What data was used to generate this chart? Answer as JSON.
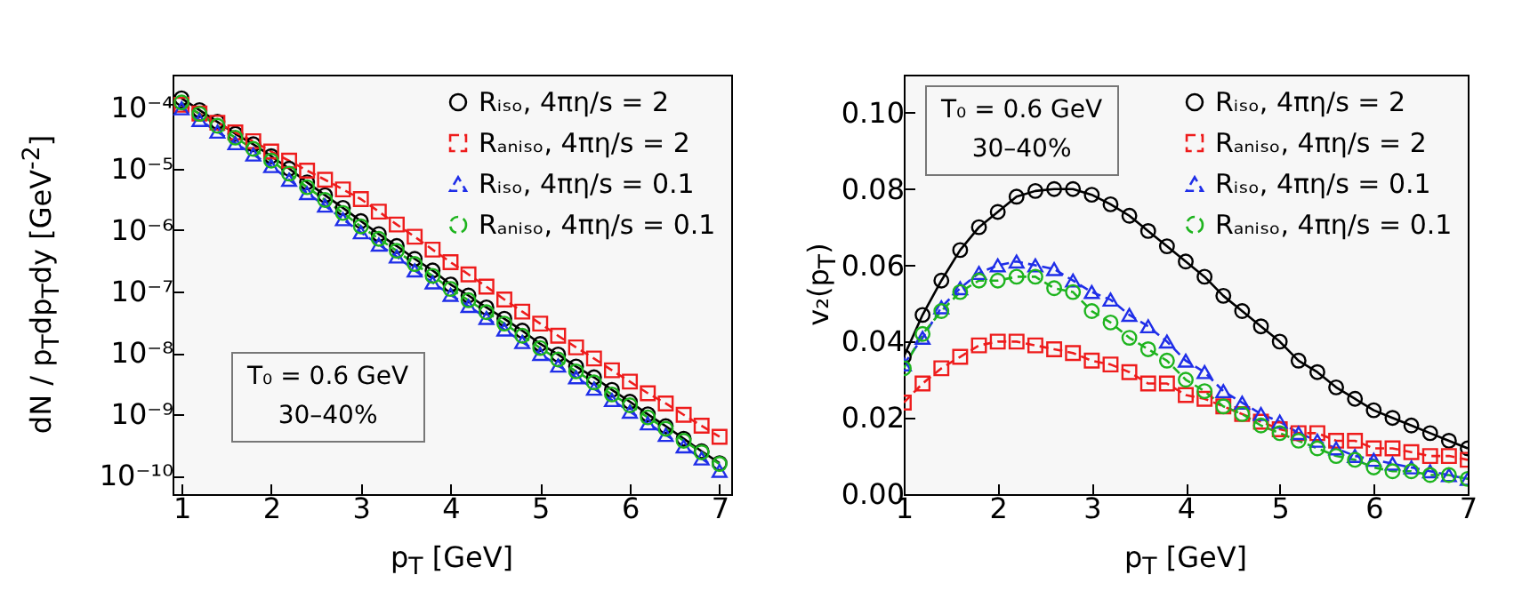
{
  "chart_data": [
    {
      "type": "line",
      "xlabel": "p$_{T}$ [GeV]",
      "ylabel": "dN / p$_{T}$dp$_{T}$dy  [GeV$^{-2}$]",
      "log": "y",
      "legend": "top right",
      "xlim": [
        0.9,
        7.13
      ],
      "xticks": [
        1,
        2,
        3,
        4,
        5,
        6,
        7
      ],
      "ylim": [
        5e-11,
        0.00034
      ],
      "yticks": [
        {
          "value": 0.0001,
          "label": "10⁻⁴"
        },
        {
          "value": 1e-05,
          "label": "10⁻⁵"
        },
        {
          "value": 1e-06,
          "label": "10⁻⁶"
        },
        {
          "value": 1e-07,
          "label": "10⁻⁷"
        },
        {
          "value": 1e-08,
          "label": "10⁻⁸"
        },
        {
          "value": 1e-09,
          "label": "10⁻⁹"
        },
        {
          "value": 1e-10,
          "label": "10⁻¹⁰"
        }
      ],
      "annotations": [
        "T₀ = 0.6 GeV",
        "30–40%"
      ],
      "x": [
        1,
        1.2,
        1.4,
        1.6,
        1.8,
        2,
        2.2,
        2.4,
        2.6,
        2.8,
        3,
        3.2,
        3.4,
        3.6,
        3.8,
        4,
        4.2,
        4.4,
        4.6,
        4.8,
        5,
        5.2,
        5.4,
        5.6,
        5.8,
        6,
        6.2,
        6.4,
        6.6,
        6.8,
        7
      ],
      "series": [
        {
          "name": "Rᵢₛₒ, 4πη/s = 2",
          "color": "#000000",
          "marker": "circle",
          "line_style": "solid",
          "values": [
            0.00014,
            9e-05,
            5.8e-05,
            3.7e-05,
            2.5e-05,
            1.6e-05,
            1e-05,
            6e-06,
            3.7e-06,
            2.3e-06,
            1.4e-06,
            8.6e-07,
            5.5e-07,
            3.4e-07,
            2.2e-07,
            1.3e-07,
            8.6e-08,
            5.5e-08,
            3.6e-08,
            2.3e-08,
            1.4e-08,
            9.4e-09,
            6e-09,
            4e-09,
            2.5e-09,
            1.6e-09,
            1e-09,
            6.4e-10,
            4e-10,
            2.5e-10,
            1.6e-10
          ]
        },
        {
          "name": "Rₐₙᵢₛₒ, 4πη/s = 2",
          "color": "#ee1c1c",
          "marker": "square",
          "line_style": "dashed",
          "values": [
            0.00011,
            7.9e-05,
            5.6e-05,
            3.9e-05,
            2.8e-05,
            1.9e-05,
            1.35e-05,
            9.3e-06,
            6.6e-06,
            4.6e-06,
            3.2e-06,
            2e-06,
            1.23e-06,
            7.8e-07,
            4.8e-07,
            3e-07,
            1.9e-07,
            1.2e-07,
            7.4e-08,
            4.7e-08,
            3e-08,
            1.9e-08,
            1.23e-08,
            8.1e-09,
            5.2e-09,
            3.4e-09,
            2.2e-09,
            1.5e-09,
            9.8e-10,
            6.5e-10,
            4.3e-10
          ]
        },
        {
          "name": "Rᵢₛₒ, 4πη/s = 0.1",
          "color": "#1f2ee8",
          "marker": "triangle",
          "line_style": "dashed",
          "values": [
            9.6e-05,
            6.2e-05,
            4e-05,
            2.6e-05,
            1.7e-05,
            1.1e-05,
            6.6e-06,
            4e-06,
            2.5e-06,
            1.5e-06,
            9.2e-07,
            5.8e-07,
            3.7e-07,
            2.2e-07,
            1.4e-07,
            8.8e-08,
            5.8e-08,
            3.7e-08,
            2.4e-08,
            1.5e-08,
            9.6e-09,
            6.2e-09,
            4e-09,
            2.6e-09,
            1.7e-09,
            1.1e-09,
            7.1e-10,
            4.6e-10,
            3e-10,
            1.9e-10,
            1.2e-10
          ]
        },
        {
          "name": "Rₐₙᵢₛₒ, 4πη/s = 0.1",
          "color": "#1eb41e",
          "marker": "circle",
          "line_style": "dashed",
          "values": [
            0.00012,
            7.8e-05,
            5e-05,
            3.2e-05,
            2.1e-05,
            1.35e-05,
            8.3e-06,
            5e-06,
            3.1e-06,
            1.9e-06,
            1.15e-06,
            7.2e-07,
            4.6e-07,
            2.8e-07,
            1.8e-07,
            1.1e-07,
            7.2e-08,
            4.6e-08,
            3e-08,
            1.9e-08,
            1.2e-08,
            7.8e-09,
            5e-09,
            3.3e-09,
            2.1e-09,
            1.4e-09,
            8.9e-10,
            5.8e-10,
            3.7e-10,
            2.4e-10,
            1.55e-10
          ]
        }
      ]
    },
    {
      "type": "line",
      "xlabel": "p$_{T}$ [GeV]",
      "ylabel": "v₂(p$_{T}$)",
      "legend": "top right",
      "xlim": [
        1,
        7
      ],
      "xticks": [
        1,
        2,
        3,
        4,
        5,
        6,
        7
      ],
      "ylim": [
        0,
        0.11
      ],
      "yticks": [
        {
          "value": 0,
          "label": "0.00"
        },
        {
          "value": 0.02,
          "label": "0.02"
        },
        {
          "value": 0.04,
          "label": "0.04"
        },
        {
          "value": 0.06,
          "label": "0.06"
        },
        {
          "value": 0.08,
          "label": "0.08"
        },
        {
          "value": 0.1,
          "label": "0.10"
        }
      ],
      "annotations": [
        "T₀ = 0.6 GeV",
        "30–40%"
      ],
      "x": [
        1,
        1.2,
        1.4,
        1.6,
        1.8,
        2,
        2.2,
        2.4,
        2.6,
        2.8,
        3,
        3.2,
        3.4,
        3.6,
        3.8,
        4,
        4.2,
        4.4,
        4.6,
        4.8,
        5,
        5.2,
        5.4,
        5.6,
        5.8,
        6,
        6.2,
        6.4,
        6.6,
        6.8,
        7
      ],
      "series": [
        {
          "name": "Rᵢₛₒ, 4πη/s = 2",
          "color": "#000000",
          "marker": "circle",
          "line_style": "solid",
          "values": [
            0.036,
            0.047,
            0.056,
            0.064,
            0.07,
            0.074,
            0.078,
            0.0795,
            0.08,
            0.08,
            0.0785,
            0.076,
            0.073,
            0.069,
            0.065,
            0.061,
            0.057,
            0.052,
            0.048,
            0.044,
            0.04,
            0.035,
            0.032,
            0.028,
            0.025,
            0.022,
            0.02,
            0.018,
            0.016,
            0.014,
            0.012
          ]
        },
        {
          "name": "Rₐₙᵢₛₒ, 4πη/s = 2",
          "color": "#ee1c1c",
          "marker": "square",
          "line_style": "dashed",
          "values": [
            0.024,
            0.029,
            0.033,
            0.036,
            0.039,
            0.04,
            0.04,
            0.039,
            0.038,
            0.037,
            0.035,
            0.034,
            0.032,
            0.029,
            0.029,
            0.026,
            0.025,
            0.023,
            0.021,
            0.019,
            0.017,
            0.016,
            0.016,
            0.014,
            0.014,
            0.012,
            0.012,
            0.011,
            0.01,
            0.01,
            0.009
          ]
        },
        {
          "name": "Rᵢₛₒ, 4πη/s = 0.1",
          "color": "#1f2ee8",
          "marker": "triangle",
          "line_style": "dashed",
          "values": [
            0.034,
            0.041,
            0.049,
            0.054,
            0.058,
            0.06,
            0.061,
            0.06,
            0.059,
            0.056,
            0.053,
            0.051,
            0.047,
            0.044,
            0.04,
            0.035,
            0.032,
            0.027,
            0.024,
            0.021,
            0.019,
            0.016,
            0.014,
            0.012,
            0.01,
            0.009,
            0.008,
            0.007,
            0.006,
            0.005,
            0.004
          ]
        },
        {
          "name": "Rₐₙᵢₛₒ, 4πη/s = 0.1",
          "color": "#1eb41e",
          "marker": "circle",
          "line_style": "dashed",
          "values": [
            0.033,
            0.042,
            0.048,
            0.053,
            0.056,
            0.056,
            0.057,
            0.057,
            0.054,
            0.053,
            0.048,
            0.045,
            0.041,
            0.038,
            0.035,
            0.03,
            0.027,
            0.023,
            0.021,
            0.018,
            0.016,
            0.014,
            0.012,
            0.01,
            0.009,
            0.007,
            0.006,
            0.006,
            0.005,
            0.005,
            0.004
          ]
        }
      ]
    }
  ]
}
